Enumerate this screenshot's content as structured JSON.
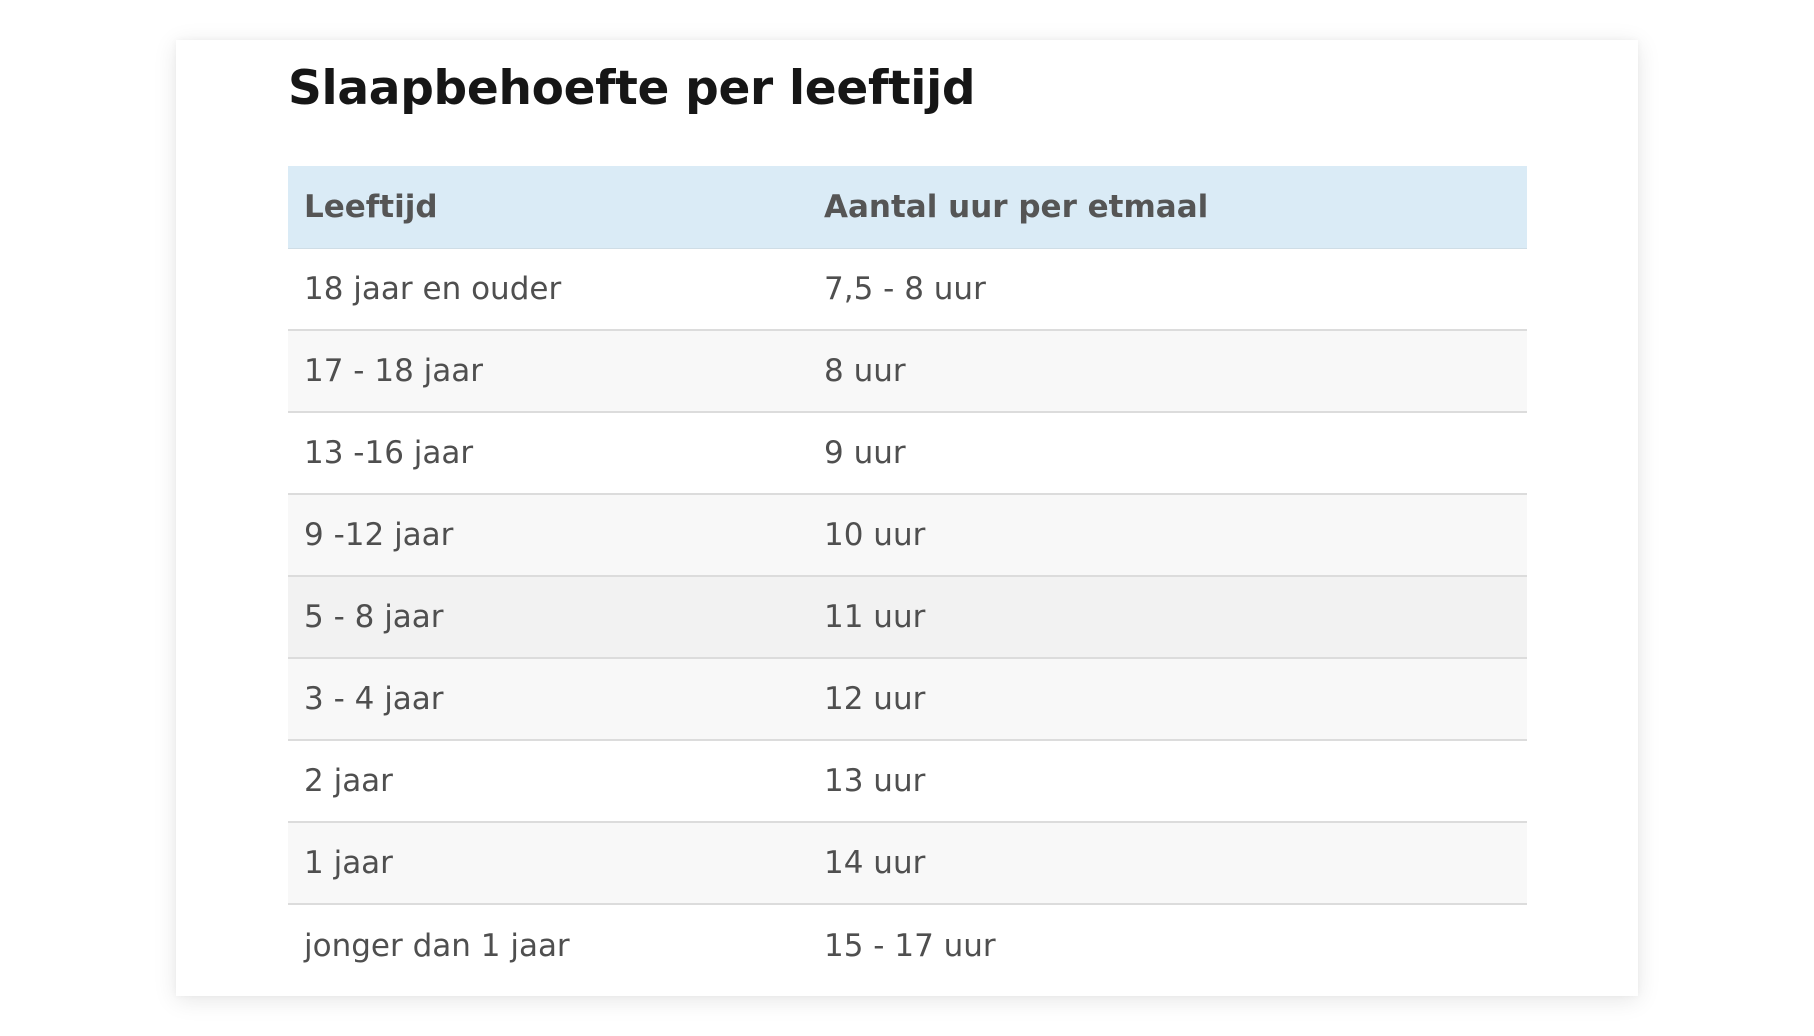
{
  "title": "Slaapbehoefte per leeftijd",
  "table": {
    "headers": [
      "Leeftijd",
      "Aantal uur per etmaal"
    ],
    "rows": [
      [
        "18 jaar en ouder",
        "7,5 - 8 uur"
      ],
      [
        "17 - 18 jaar",
        "8 uur"
      ],
      [
        "13 -16 jaar",
        "9 uur"
      ],
      [
        "9 -12 jaar",
        "10 uur"
      ],
      [
        "5 - 8 jaar",
        "11 uur"
      ],
      [
        "3 - 4 jaar",
        "12 uur"
      ],
      [
        "2 jaar",
        "13 uur"
      ],
      [
        "1 jaar",
        "14 uur"
      ],
      [
        "jonger dan 1 jaar",
        "15 - 17 uur"
      ]
    ]
  },
  "colors": {
    "header_background": "#daebf6",
    "title_text": "#161616",
    "body_text": "#4f4f4f",
    "row_stripe": "#f8f8f8",
    "row_highlight": "#f2f2f2",
    "row_divider": "#dcdcdc"
  }
}
